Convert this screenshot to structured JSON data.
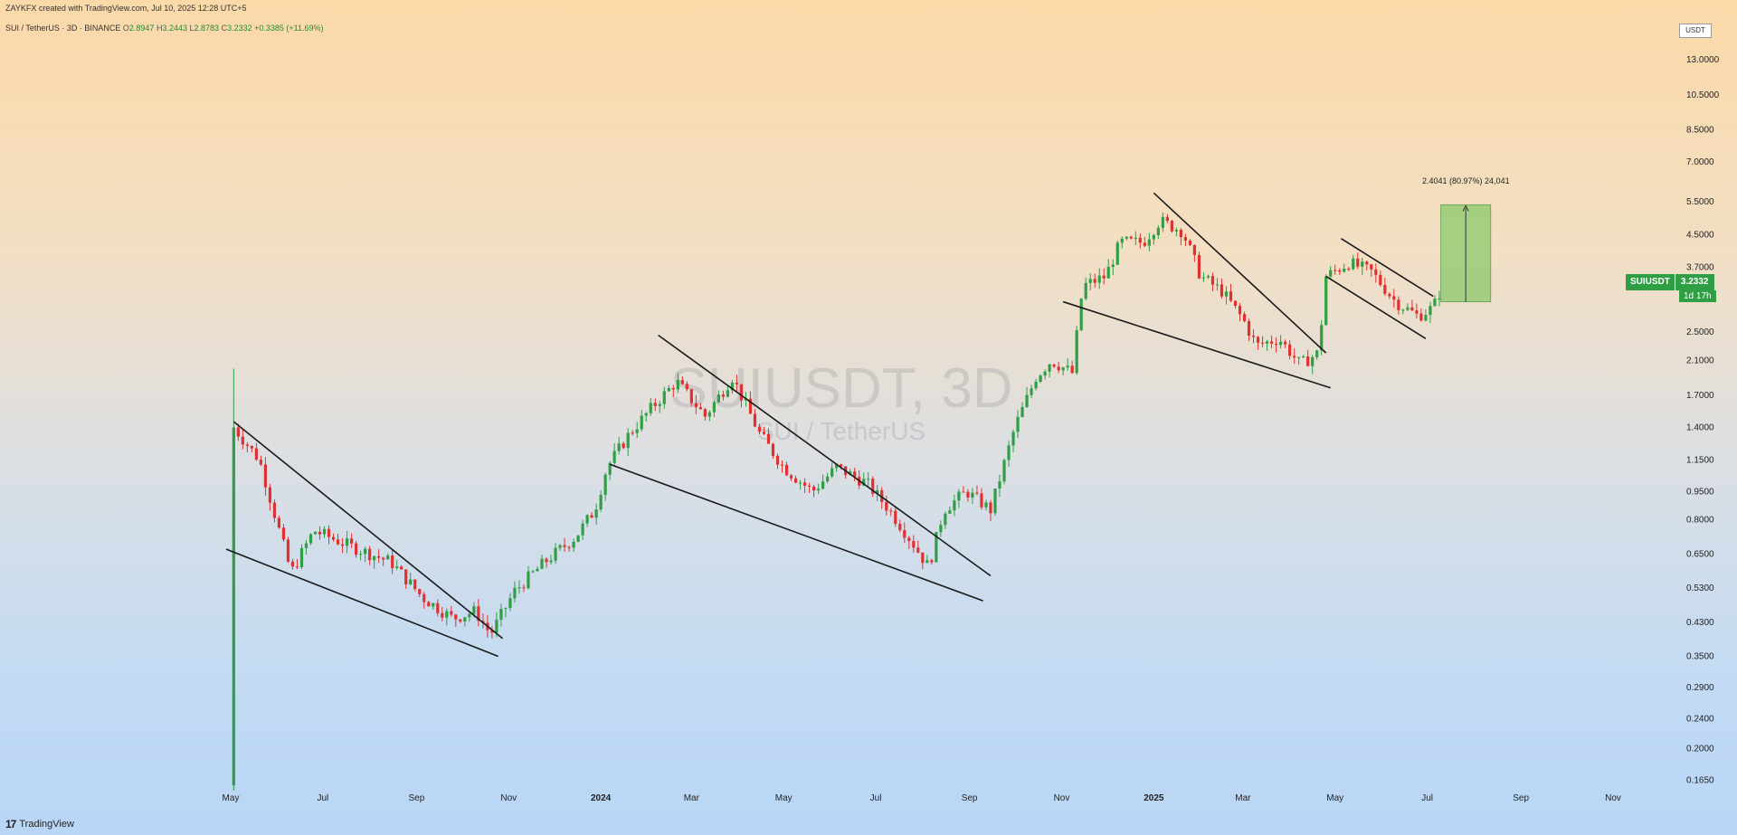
{
  "header": {
    "created_by": "ZAYKFX created with TradingView.com, Jul 10, 2025 12:28 UTC+5"
  },
  "legend": {
    "symbol": "SUI / TetherUS · 3D · BINANCE",
    "o_label": "O",
    "o_value": "2.8947",
    "h_label": "H",
    "h_value": "3.2443",
    "l_label": "L",
    "l_value": "2.8783",
    "c_label": "C",
    "c_value": "3.2332",
    "change": "+0.3385 (+11.69%)"
  },
  "axis_currency": "USDT",
  "watermark": {
    "title": "SUIUSDT, 3D",
    "subtitle": "SUI / TetherUS"
  },
  "price_tag": {
    "symbol": "SUIUSDT",
    "value": "3.2332",
    "countdown": "1d 17h"
  },
  "measure": {
    "label": "2.4041 (80.97%) 24,041",
    "from": 3.0,
    "to": 5.4
  },
  "footer": {
    "logo": "17",
    "brand": "TradingView"
  },
  "colors": {
    "up": "#2f9e44",
    "down": "#e03131",
    "measure_fill": "#8bc96b"
  },
  "chart_data": {
    "type": "candlestick",
    "scale": "log",
    "ylim": [
      0.15,
      15.0
    ],
    "y_ticks": [
      {
        "label": "13.0000",
        "value": 13.0
      },
      {
        "label": "10.5000",
        "value": 10.5
      },
      {
        "label": "8.5000",
        "value": 8.5
      },
      {
        "label": "7.0000",
        "value": 7.0
      },
      {
        "label": "5.5000",
        "value": 5.5
      },
      {
        "label": "4.5000",
        "value": 4.5
      },
      {
        "label": "3.7000",
        "value": 3.7
      },
      {
        "label": "2.5000",
        "value": 2.5
      },
      {
        "label": "2.1000",
        "value": 2.1
      },
      {
        "label": "1.7000",
        "value": 1.7
      },
      {
        "label": "1.4000",
        "value": 1.4
      },
      {
        "label": "1.1500",
        "value": 1.15
      },
      {
        "label": "0.9500",
        "value": 0.95
      },
      {
        "label": "0.8000",
        "value": 0.8
      },
      {
        "label": "0.6500",
        "value": 0.65
      },
      {
        "label": "0.5300",
        "value": 0.53
      },
      {
        "label": "0.4300",
        "value": 0.43
      },
      {
        "label": "0.3500",
        "value": 0.35
      },
      {
        "label": "0.2900",
        "value": 0.29
      },
      {
        "label": "0.2400",
        "value": 0.24
      },
      {
        "label": "0.2000",
        "value": 0.2
      },
      {
        "label": "0.1650",
        "value": 0.165
      }
    ],
    "x_ticks": [
      {
        "label": "May",
        "date": "2023-05-01"
      },
      {
        "label": "Jul",
        "date": "2023-07-01"
      },
      {
        "label": "Sep",
        "date": "2023-09-01"
      },
      {
        "label": "Nov",
        "date": "2023-11-01"
      },
      {
        "label": "2024",
        "date": "2024-01-01"
      },
      {
        "label": "Mar",
        "date": "2024-03-01"
      },
      {
        "label": "May",
        "date": "2024-05-01"
      },
      {
        "label": "Jul",
        "date": "2024-07-01"
      },
      {
        "label": "Sep",
        "date": "2024-09-01"
      },
      {
        "label": "Nov",
        "date": "2024-11-01"
      },
      {
        "label": "2025",
        "date": "2025-01-01"
      },
      {
        "label": "Mar",
        "date": "2025-03-01"
      },
      {
        "label": "May",
        "date": "2025-05-01"
      },
      {
        "label": "Jul",
        "date": "2025-07-01"
      },
      {
        "label": "Sep",
        "date": "2025-09-01"
      },
      {
        "label": "Nov",
        "date": "2025-11-01"
      }
    ],
    "path": [
      [
        "2023-05-03",
        1.4
      ],
      [
        "2023-05-20",
        1.15
      ],
      [
        "2023-06-10",
        0.58
      ],
      [
        "2023-06-25",
        0.75
      ],
      [
        "2023-07-20",
        0.68
      ],
      [
        "2023-08-15",
        0.62
      ],
      [
        "2023-09-05",
        0.5
      ],
      [
        "2023-09-25",
        0.44
      ],
      [
        "2023-10-10",
        0.46
      ],
      [
        "2023-10-20",
        0.4
      ],
      [
        "2023-11-05",
        0.52
      ],
      [
        "2023-11-25",
        0.62
      ],
      [
        "2023-12-15",
        0.72
      ],
      [
        "2023-12-28",
        0.85
      ],
      [
        "2024-01-05",
        1.1
      ],
      [
        "2024-01-20",
        1.35
      ],
      [
        "2024-02-05",
        1.6
      ],
      [
        "2024-02-20",
        1.85
      ],
      [
        "2024-03-10",
        1.5
      ],
      [
        "2024-03-28",
        1.9
      ],
      [
        "2024-04-15",
        1.35
      ],
      [
        "2024-05-01",
        1.1
      ],
      [
        "2024-05-20",
        0.95
      ],
      [
        "2024-06-05",
        1.1
      ],
      [
        "2024-06-25",
        1.0
      ],
      [
        "2024-07-10",
        0.85
      ],
      [
        "2024-07-25",
        0.7
      ],
      [
        "2024-08-05",
        0.6
      ],
      [
        "2024-08-15",
        0.85
      ],
      [
        "2024-08-30",
        0.95
      ],
      [
        "2024-09-15",
        0.85
      ],
      [
        "2024-10-01",
        1.4
      ],
      [
        "2024-10-15",
        1.9
      ],
      [
        "2024-10-25",
        2.1
      ],
      [
        "2024-11-08",
        1.95
      ],
      [
        "2024-11-15",
        3.3
      ],
      [
        "2024-11-30",
        3.5
      ],
      [
        "2024-12-10",
        4.3
      ],
      [
        "2024-12-25",
        4.3
      ],
      [
        "2025-01-05",
        4.9
      ],
      [
        "2025-01-20",
        4.6
      ],
      [
        "2025-02-01",
        3.5
      ],
      [
        "2025-02-15",
        3.2
      ],
      [
        "2025-03-01",
        2.7
      ],
      [
        "2025-03-10",
        2.3
      ],
      [
        "2025-03-25",
        2.4
      ],
      [
        "2025-04-08",
        2.05
      ],
      [
        "2025-04-20",
        2.2
      ],
      [
        "2025-04-25",
        3.5
      ],
      [
        "2025-05-10",
        3.8
      ],
      [
        "2025-05-25",
        3.6
      ],
      [
        "2025-06-10",
        3.0
      ],
      [
        "2025-06-25",
        2.75
      ],
      [
        "2025-07-05",
        2.9
      ],
      [
        "2025-07-10",
        3.23
      ]
    ],
    "trendlines": [
      [
        [
          "2023-05-03",
          1.45
        ],
        [
          "2023-10-28",
          0.39
        ]
      ],
      [
        [
          "2023-04-28",
          0.67
        ],
        [
          "2023-10-25",
          0.35
        ]
      ],
      [
        [
          "2024-02-08",
          2.45
        ],
        [
          "2024-09-15",
          0.57
        ]
      ],
      [
        [
          "2024-01-07",
          1.12
        ],
        [
          "2024-09-10",
          0.49
        ]
      ],
      [
        [
          "2025-01-01",
          5.8
        ],
        [
          "2025-04-25",
          2.2
        ]
      ],
      [
        [
          "2024-11-02",
          3.0
        ],
        [
          "2025-04-28",
          1.78
        ]
      ],
      [
        [
          "2025-05-05",
          4.4
        ],
        [
          "2025-07-05",
          3.1
        ]
      ],
      [
        [
          "2025-04-25",
          3.5
        ],
        [
          "2025-06-30",
          2.4
        ]
      ]
    ]
  }
}
